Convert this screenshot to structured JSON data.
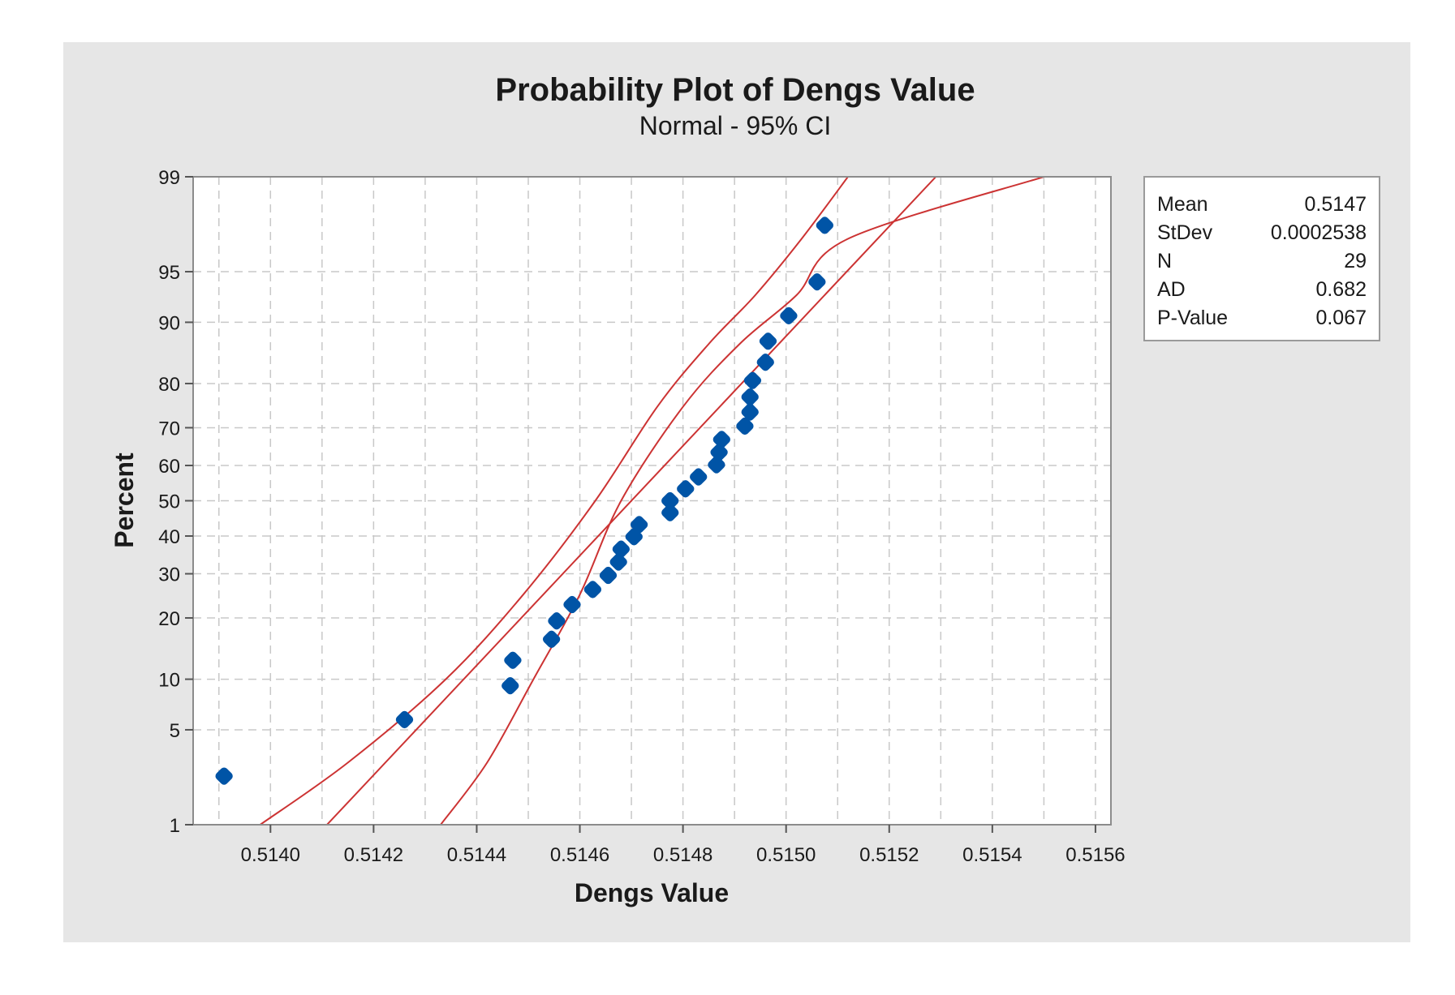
{
  "chart_data": {
    "type": "scatter",
    "title": "Probability Plot of Dengs Value",
    "subtitle": "Normal - 95% CI",
    "xlabel": "Dengs Value",
    "ylabel": "Percent",
    "xlim": [
      0.51385,
      0.51563
    ],
    "ylim": [
      1,
      99
    ],
    "y_scale": "normal-probability",
    "grid": true,
    "x_ticks": [
      {
        "value": 0.514,
        "label": "0.5140"
      },
      {
        "value": 0.5142,
        "label": "0.5142"
      },
      {
        "value": 0.5144,
        "label": "0.5144"
      },
      {
        "value": 0.5146,
        "label": "0.5146"
      },
      {
        "value": 0.5148,
        "label": "0.5148"
      },
      {
        "value": 0.515,
        "label": "0.5150"
      },
      {
        "value": 0.5152,
        "label": "0.5152"
      },
      {
        "value": 0.5154,
        "label": "0.5154"
      },
      {
        "value": 0.5156,
        "label": "0.5156"
      }
    ],
    "y_ticks": [
      {
        "value": 1,
        "label": "1"
      },
      {
        "value": 5,
        "label": "5"
      },
      {
        "value": 10,
        "label": "10"
      },
      {
        "value": 20,
        "label": "20"
      },
      {
        "value": 30,
        "label": "30"
      },
      {
        "value": 40,
        "label": "40"
      },
      {
        "value": 50,
        "label": "50"
      },
      {
        "value": 60,
        "label": "60"
      },
      {
        "value": 70,
        "label": "70"
      },
      {
        "value": 80,
        "label": "80"
      },
      {
        "value": 90,
        "label": "90"
      },
      {
        "value": 95,
        "label": "95"
      },
      {
        "value": 99,
        "label": "99"
      }
    ],
    "points": [
      {
        "x": 0.51391,
        "p": 2.4
      },
      {
        "x": 0.51426,
        "p": 5.8
      },
      {
        "x": 0.514465,
        "p": 9.2
      },
      {
        "x": 0.51447,
        "p": 12.6
      },
      {
        "x": 0.514545,
        "p": 16.0
      },
      {
        "x": 0.514555,
        "p": 19.4
      },
      {
        "x": 0.514585,
        "p": 22.8
      },
      {
        "x": 0.514625,
        "p": 26.2
      },
      {
        "x": 0.514655,
        "p": 29.6
      },
      {
        "x": 0.514675,
        "p": 33.0
      },
      {
        "x": 0.51468,
        "p": 36.4
      },
      {
        "x": 0.514705,
        "p": 39.8
      },
      {
        "x": 0.514715,
        "p": 43.2
      },
      {
        "x": 0.514775,
        "p": 46.6
      },
      {
        "x": 0.514775,
        "p": 50.0
      },
      {
        "x": 0.514805,
        "p": 53.4
      },
      {
        "x": 0.51483,
        "p": 56.8
      },
      {
        "x": 0.514865,
        "p": 60.2
      },
      {
        "x": 0.51487,
        "p": 63.6
      },
      {
        "x": 0.514875,
        "p": 67.0
      },
      {
        "x": 0.51492,
        "p": 70.4
      },
      {
        "x": 0.51493,
        "p": 73.8
      },
      {
        "x": 0.51493,
        "p": 77.2
      },
      {
        "x": 0.514935,
        "p": 80.6
      },
      {
        "x": 0.51496,
        "p": 84.0
      },
      {
        "x": 0.514965,
        "p": 87.4
      },
      {
        "x": 0.515005,
        "p": 90.8
      },
      {
        "x": 0.51506,
        "p": 94.2
      },
      {
        "x": 0.515075,
        "p": 97.6
      }
    ],
    "fit_line": {
      "mean": 0.5147,
      "stdev": 0.0002538
    },
    "ci_bands": {
      "lower": [
        {
          "x": 0.51433,
          "p": 1
        },
        {
          "x": 0.51442,
          "p": 3
        },
        {
          "x": 0.51451,
          "p": 10
        },
        {
          "x": 0.5146,
          "p": 25
        },
        {
          "x": 0.51468,
          "p": 50
        },
        {
          "x": 0.5148,
          "p": 75
        },
        {
          "x": 0.51491,
          "p": 87
        },
        {
          "x": 0.51502,
          "p": 93
        },
        {
          "x": 0.51512,
          "p": 97
        },
        {
          "x": 0.5155,
          "p": 99
        }
      ],
      "upper": [
        {
          "x": 0.51398,
          "p": 1
        },
        {
          "x": 0.51415,
          "p": 3
        },
        {
          "x": 0.51434,
          "p": 10
        },
        {
          "x": 0.51449,
          "p": 25
        },
        {
          "x": 0.51463,
          "p": 50
        },
        {
          "x": 0.51475,
          "p": 75
        },
        {
          "x": 0.51485,
          "p": 87
        },
        {
          "x": 0.51494,
          "p": 93
        },
        {
          "x": 0.51503,
          "p": 97
        },
        {
          "x": 0.51512,
          "p": 99
        }
      ]
    },
    "colors": {
      "background": "#e6e6e6",
      "plot_area": "#ffffff",
      "points": "#0054a6",
      "lines": "#cc3333",
      "grid": "#c8c8c8",
      "frame": "#8c8c8c"
    }
  },
  "legend": {
    "rows": [
      {
        "label": "Mean",
        "value": "0.5147"
      },
      {
        "label": "StDev",
        "value": "0.0002538"
      },
      {
        "label": "N",
        "value": "29"
      },
      {
        "label": "AD",
        "value": "0.682"
      },
      {
        "label": "P-Value",
        "value": "0.067"
      }
    ]
  }
}
